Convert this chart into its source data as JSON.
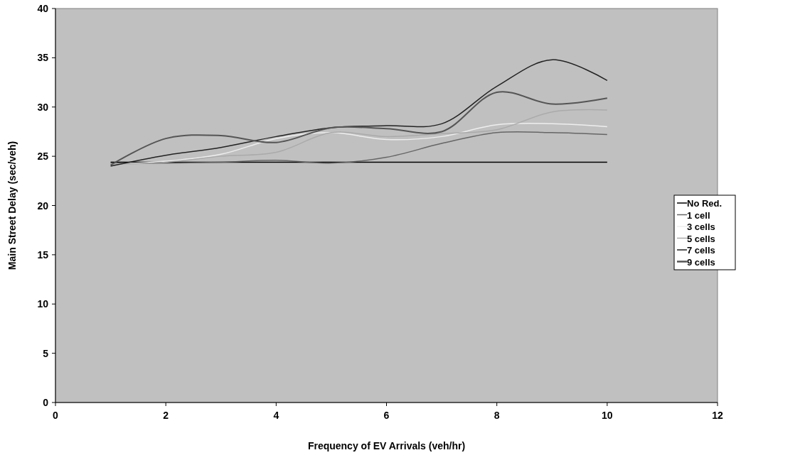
{
  "chart_data": {
    "type": "line",
    "xlabel": "Frequency of EV Arrivals (veh/hr)",
    "ylabel": "Main Street Delay (sec/veh)",
    "x": [
      1,
      2,
      3,
      4,
      5,
      6,
      7,
      8,
      9,
      10
    ],
    "xlim": [
      0,
      12
    ],
    "xticks": [
      0,
      2,
      4,
      6,
      8,
      10,
      12
    ],
    "ylim": [
      0,
      40
    ],
    "yticks": [
      0,
      5,
      10,
      15,
      20,
      25,
      30,
      35,
      40
    ],
    "grid": false,
    "legend": "right",
    "marker": "none",
    "line_style": "solid",
    "series": [
      {
        "name": "No Red.",
        "color": "#000000",
        "values": [
          24.4,
          24.4,
          24.4,
          24.4,
          24.4,
          24.4,
          24.4,
          24.4,
          24.4,
          24.4
        ]
      },
      {
        "name": "1 cell",
        "color": "#666666",
        "values": [
          24.3,
          24.3,
          24.4,
          24.6,
          24.3,
          24.9,
          26.3,
          27.4,
          27.4,
          27.2
        ]
      },
      {
        "name": "3 cells",
        "color": "#eeeeee",
        "values": [
          24.2,
          24.5,
          25.2,
          26.8,
          27.4,
          26.7,
          27.0,
          28.2,
          28.3,
          28.0
        ]
      },
      {
        "name": "5 cells",
        "color": "#aaaaaa",
        "values": [
          24.2,
          24.4,
          25.0,
          25.4,
          27.4,
          27.0,
          27.3,
          27.7,
          29.5,
          29.7
        ]
      },
      {
        "name": "7 cells",
        "color": "#222222",
        "values": [
          24.0,
          25.1,
          25.9,
          27.0,
          27.9,
          28.1,
          28.3,
          32.1,
          34.8,
          32.7
        ]
      },
      {
        "name": "9 cells",
        "color": "#555555",
        "values": [
          24.1,
          26.8,
          27.1,
          26.4,
          27.9,
          27.8,
          27.5,
          31.5,
          30.3,
          30.9
        ]
      }
    ]
  }
}
